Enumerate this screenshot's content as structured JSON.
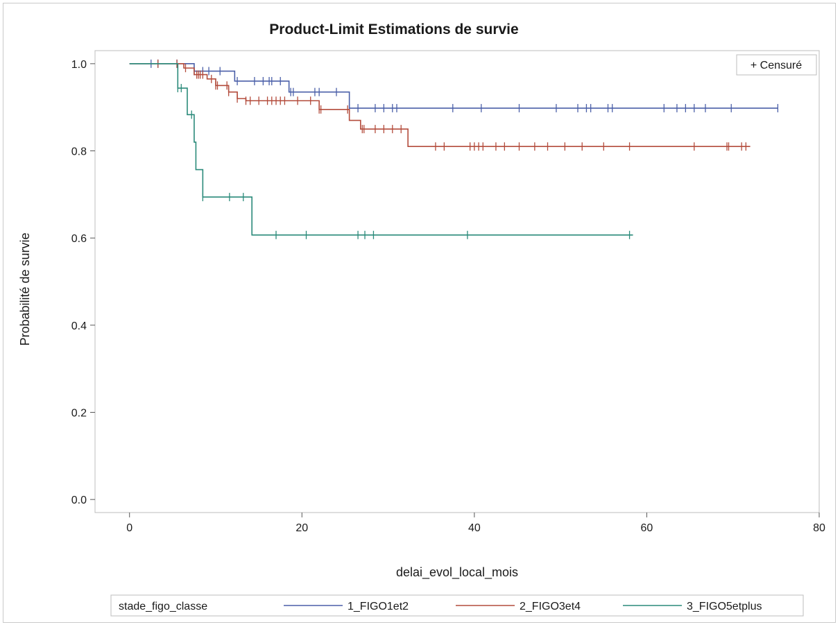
{
  "chart_data": {
    "type": "line",
    "subtype": "step (Kaplan-Meier survival)",
    "title": "Product-Limit Estimations de survie",
    "xlabel": "delai_evol_local_mois",
    "ylabel": "Probabilité de survie",
    "xlim": [
      -4,
      80
    ],
    "ylim": [
      -0.03,
      1.03
    ],
    "xticks": [
      "0",
      "20",
      "40",
      "60",
      "80"
    ],
    "yticks": [
      "0.0",
      "0.2",
      "0.4",
      "0.6",
      "0.8",
      "1.0"
    ],
    "xtick_values": [
      0,
      20,
      40,
      60,
      80
    ],
    "ytick_values": [
      0,
      0.2,
      0.4,
      0.6,
      0.8,
      1.0
    ],
    "grid": false,
    "inset_legend": {
      "label": "+ Censuré",
      "placement": "top-right"
    },
    "legend": {
      "title": "stade_figo_classe",
      "placement": "bottom"
    },
    "series": [
      {
        "name": "1_FIGO1et2",
        "color": "#4a5fa8",
        "steps": [
          [
            0,
            1.0
          ],
          [
            7.5,
            0.983
          ],
          [
            12.2,
            0.96
          ],
          [
            18.5,
            0.935
          ],
          [
            25.5,
            0.898
          ],
          [
            75.2,
            0.898
          ]
        ],
        "censored": [
          2.5,
          3.3,
          5.5,
          7.5,
          8.5,
          9.2,
          10.5,
          12.5,
          14.5,
          15.5,
          16.2,
          16.5,
          17.5,
          18.7,
          19.0,
          21.5,
          22.0,
          24.0,
          25.5,
          26.5,
          28.5,
          29.5,
          30.5,
          31.0,
          37.5,
          40.8,
          45.2,
          49.5,
          52.0,
          53.0,
          53.5,
          55.5,
          56.0,
          62.0,
          63.5,
          64.5,
          65.5,
          66.8,
          69.8,
          75.2
        ]
      },
      {
        "name": "2_FIGO3et4",
        "color": "#b34b3b",
        "steps": [
          [
            0,
            1.0
          ],
          [
            6.3,
            0.99
          ],
          [
            7.5,
            0.975
          ],
          [
            9.0,
            0.965
          ],
          [
            10.0,
            0.95
          ],
          [
            11.5,
            0.935
          ],
          [
            12.5,
            0.92
          ],
          [
            13.5,
            0.915
          ],
          [
            22.0,
            0.895
          ],
          [
            25.5,
            0.87
          ],
          [
            26.8,
            0.85
          ],
          [
            32.3,
            0.81
          ],
          [
            72.0,
            0.81
          ]
        ],
        "censored": [
          3.3,
          5.5,
          6.5,
          7.8,
          8.0,
          8.2,
          8.5,
          9.5,
          10.0,
          10.2,
          11.3,
          11.5,
          12.5,
          13.5,
          14.0,
          15.0,
          16.0,
          16.5,
          17.0,
          17.5,
          18.0,
          19.5,
          21.0,
          22.0,
          22.2,
          25.3,
          27.0,
          27.2,
          28.5,
          29.5,
          30.5,
          31.5,
          35.5,
          36.5,
          39.5,
          40.0,
          40.5,
          41.0,
          42.5,
          43.5,
          45.2,
          47.0,
          48.5,
          50.5,
          52.5,
          55.0,
          58.0,
          65.5,
          69.3,
          69.5,
          71.0,
          71.5
        ]
      },
      {
        "name": "3_FIGO5etplus",
        "color": "#2a8a7a",
        "steps": [
          [
            0,
            1.0
          ],
          [
            5.6,
            0.944
          ],
          [
            6.7,
            0.883
          ],
          [
            7.5,
            0.82
          ],
          [
            7.7,
            0.757
          ],
          [
            8.5,
            0.694
          ],
          [
            14.2,
            0.607
          ],
          [
            58.4,
            0.607
          ]
        ],
        "censored": [
          5.6,
          6.0,
          7.2,
          8.5,
          11.6,
          13.2,
          17.0,
          20.5,
          26.5,
          27.3,
          28.3,
          39.2,
          58.0
        ]
      }
    ]
  }
}
